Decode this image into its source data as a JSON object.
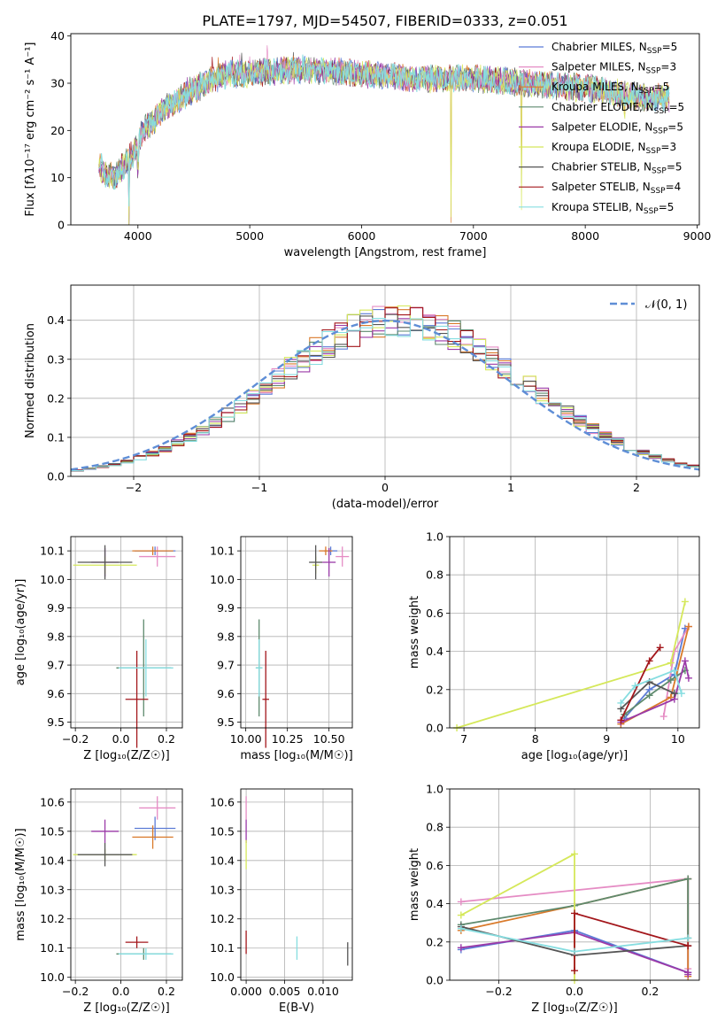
{
  "figure_title": "PLATE=1797, MJD=54507, FIBERID=0333, z=0.051",
  "chart_data": [
    {
      "id": "spectrum",
      "type": "line",
      "xlabel": "wavelength [Angstrom, rest frame]",
      "ylabel": "Flux [fλ10⁻¹⁷ erg cm⁻² s⁻¹ A⁻¹]",
      "xlim": [
        3400,
        9020
      ],
      "ylim": [
        0,
        40.5
      ],
      "xticks": [
        4000,
        5000,
        6000,
        7000,
        8000,
        9000
      ],
      "yticks": [
        0,
        10,
        20,
        30,
        40
      ],
      "legend_position": "top-right",
      "series": [
        {
          "name": "Chabrier MILES, N",
          "sub": "SSP",
          "suffix": "=5",
          "color": "#5b7bd6"
        },
        {
          "name": "Salpeter MILES, N",
          "sub": "SSP",
          "suffix": "=3",
          "color": "#e58cc4"
        },
        {
          "name": "Kroupa MILES, N",
          "sub": "SSP",
          "suffix": "=5",
          "color": "#d97a2b"
        },
        {
          "name": "Chabrier ELODIE, N",
          "sub": "SSP",
          "suffix": "=5",
          "color": "#5e8a6e"
        },
        {
          "name": "Salpeter ELODIE, N",
          "sub": "SSP",
          "suffix": "=5",
          "color": "#9b3aa8"
        },
        {
          "name": "Kroupa ELODIE, N",
          "sub": "SSP",
          "suffix": "=3",
          "color": "#d5e85a"
        },
        {
          "name": "Chabrier STELIB, N",
          "sub": "SSP",
          "suffix": "=5",
          "color": "#555555"
        },
        {
          "name": "Salpeter STELIB, N",
          "sub": "SSP",
          "suffix": "=4",
          "color": "#a3161b"
        },
        {
          "name": "Kroupa STELIB, N",
          "sub": "SSP",
          "suffix": "=5",
          "color": "#86dde0"
        }
      ],
      "continuum": [
        [
          3650,
          13
        ],
        [
          3700,
          11
        ],
        [
          3800,
          10
        ],
        [
          3850,
          12
        ],
        [
          3950,
          15
        ],
        [
          4050,
          20
        ],
        [
          4150,
          22
        ],
        [
          4250,
          25
        ],
        [
          4400,
          27
        ],
        [
          4600,
          30
        ],
        [
          4800,
          32
        ],
        [
          5000,
          32
        ],
        [
          5200,
          32.5
        ],
        [
          5500,
          33
        ],
        [
          6000,
          32
        ],
        [
          6500,
          31
        ],
        [
          7000,
          31
        ],
        [
          7500,
          30
        ],
        [
          8000,
          29
        ],
        [
          8500,
          27
        ],
        [
          8750,
          27
        ]
      ],
      "spikes": [
        [
          3920,
          -13
        ],
        [
          4000,
          -5
        ],
        [
          6800,
          -31
        ],
        [
          7430,
          -24
        ],
        [
          8350,
          -4
        ]
      ]
    },
    {
      "id": "residual-histogram",
      "type": "bar",
      "xlabel": "(data-model)/error",
      "ylabel": "Normed distribution",
      "xlim": [
        -2.5,
        2.5
      ],
      "ylim": [
        0,
        0.49
      ],
      "xticks": [
        -2,
        -1,
        0,
        1,
        2
      ],
      "yticks": [
        0.0,
        0.1,
        0.2,
        0.3,
        0.4
      ],
      "legend_position": "top-right",
      "reference_curve": {
        "name": "𝒩(0, 1)",
        "color": "#5f8ed6"
      },
      "bin_width": 0.1
    },
    {
      "id": "age-vs-metallicity",
      "type": "scatter",
      "xlabel": "Z [log₁₀(Z/Z☉)]",
      "ylabel": "age  [log₁₀(age/yr)]",
      "xlim": [
        -0.22,
        0.27
      ],
      "ylim": [
        9.48,
        10.15
      ],
      "xticks": [
        -0.2,
        0.0,
        0.2
      ],
      "yticks": [
        9.5,
        9.6,
        9.7,
        9.8,
        9.9,
        10.0,
        10.1
      ],
      "points": [
        {
          "series": 0,
          "x": 0.15,
          "y": 10.1,
          "xerr": 0.09,
          "yerr": 0.015
        },
        {
          "series": 1,
          "x": 0.16,
          "y": 10.08,
          "xerr": 0.08,
          "yerr": 0.035
        },
        {
          "series": 2,
          "x": 0.14,
          "y": 10.1,
          "xerr": 0.09,
          "yerr": 0.015
        },
        {
          "series": 3,
          "x": 0.1,
          "y": 9.69,
          "xerr": 0.12,
          "yerr": 0.17
        },
        {
          "series": 4,
          "x": -0.07,
          "y": 10.06,
          "xerr": 0.06,
          "yerr": 0.05
        },
        {
          "series": 5,
          "x": -0.07,
          "y": 10.05,
          "xerr": 0.14,
          "yerr": 0.03
        },
        {
          "series": 6,
          "x": -0.07,
          "y": 10.06,
          "xerr": 0.12,
          "yerr": 0.06
        },
        {
          "series": 7,
          "x": 0.07,
          "y": 9.58,
          "xerr": 0.05,
          "yerr": 0.17
        },
        {
          "series": 8,
          "x": 0.11,
          "y": 9.69,
          "xerr": 0.12,
          "yerr": 0.1
        }
      ]
    },
    {
      "id": "age-vs-mass",
      "type": "scatter",
      "xlabel": "mass [log₁₀(M/M☉)]",
      "ylabel": "",
      "xlim": [
        9.97,
        10.64
      ],
      "ylim": [
        9.48,
        10.15
      ],
      "xticks": [
        10.0,
        10.25,
        10.5
      ],
      "xtick_labels": [
        "10.00",
        "10.25",
        "10.50"
      ],
      "yticks": [
        9.5,
        9.6,
        9.7,
        9.8,
        9.9,
        10.0,
        10.1
      ],
      "points": [
        {
          "series": 0,
          "x": 10.51,
          "y": 10.1,
          "xerr": 0.04,
          "yerr": 0.015
        },
        {
          "series": 1,
          "x": 10.58,
          "y": 10.08,
          "xerr": 0.04,
          "yerr": 0.035
        },
        {
          "series": 2,
          "x": 10.48,
          "y": 10.1,
          "xerr": 0.04,
          "yerr": 0.015
        },
        {
          "series": 3,
          "x": 10.08,
          "y": 9.69,
          "xerr": 0.02,
          "yerr": 0.17
        },
        {
          "series": 4,
          "x": 10.5,
          "y": 10.06,
          "xerr": 0.04,
          "yerr": 0.05
        },
        {
          "series": 5,
          "x": 10.42,
          "y": 10.05,
          "xerr": 0.02,
          "yerr": 0.03
        },
        {
          "series": 6,
          "x": 10.42,
          "y": 10.06,
          "xerr": 0.04,
          "yerr": 0.06
        },
        {
          "series": 7,
          "x": 10.12,
          "y": 9.58,
          "xerr": 0.02,
          "yerr": 0.17
        },
        {
          "series": 8,
          "x": 10.08,
          "y": 9.69,
          "xerr": 0.02,
          "yerr": 0.1
        }
      ]
    },
    {
      "id": "weight-vs-age",
      "type": "line",
      "xlabel": "age  [log₁₀(age/yr)]",
      "ylabel": "mass weight",
      "xlim": [
        6.8,
        10.3
      ],
      "ylim": [
        0,
        1.0
      ],
      "xticks": [
        7,
        8,
        9,
        10
      ],
      "yticks": [
        0.0,
        0.2,
        0.4,
        0.6,
        0.8,
        1.0
      ],
      "lines": [
        {
          "series": 0,
          "x": [
            9.25,
            9.6,
            9.95,
            10.1
          ],
          "y": [
            0.05,
            0.2,
            0.28,
            0.52
          ]
        },
        {
          "series": 1,
          "x": [
            9.8,
            9.95,
            10.15
          ],
          "y": [
            0.06,
            0.4,
            0.53
          ]
        },
        {
          "series": 2,
          "x": [
            9.2,
            9.9,
            10.15
          ],
          "y": [
            0.02,
            0.16,
            0.53
          ]
        },
        {
          "series": 3,
          "x": [
            9.25,
            9.6,
            9.9,
            10.1
          ],
          "y": [
            0.07,
            0.17,
            0.25,
            0.3
          ]
        },
        {
          "series": 4,
          "x": [
            9.2,
            9.95,
            10.1,
            10.15
          ],
          "y": [
            0.03,
            0.15,
            0.35,
            0.26
          ]
        },
        {
          "series": 5,
          "x": [
            6.9,
            9.9,
            10.1
          ],
          "y": [
            0.0,
            0.34,
            0.66
          ]
        },
        {
          "series": 6,
          "x": [
            9.2,
            9.6,
            9.95
          ],
          "y": [
            0.1,
            0.24,
            0.18
          ]
        },
        {
          "series": 7,
          "x": [
            9.2,
            9.6,
            9.75
          ],
          "y": [
            0.04,
            0.35,
            0.42
          ]
        },
        {
          "series": 8,
          "x": [
            9.2,
            9.4,
            9.95,
            10.05
          ],
          "y": [
            0.13,
            0.22,
            0.3,
            0.18
          ]
        }
      ]
    },
    {
      "id": "mass-vs-metallicity",
      "type": "scatter",
      "xlabel": "Z [log₁₀(Z/Z☉)]",
      "ylabel": "mass [log₁₀(M/M☉)]",
      "xlim": [
        -0.22,
        0.27
      ],
      "ylim": [
        9.99,
        10.645
      ],
      "xticks": [
        -0.2,
        0.0,
        0.2
      ],
      "yticks": [
        10.0,
        10.1,
        10.2,
        10.3,
        10.4,
        10.5,
        10.6
      ],
      "points": [
        {
          "series": 0,
          "x": 0.15,
          "y": 10.51,
          "xerr": 0.09,
          "yerr": 0.04
        },
        {
          "series": 1,
          "x": 0.16,
          "y": 10.58,
          "xerr": 0.08,
          "yerr": 0.04
        },
        {
          "series": 2,
          "x": 0.14,
          "y": 10.48,
          "xerr": 0.09,
          "yerr": 0.04
        },
        {
          "series": 3,
          "x": 0.1,
          "y": 10.08,
          "xerr": 0.12,
          "yerr": 0.02
        },
        {
          "series": 4,
          "x": -0.07,
          "y": 10.5,
          "xerr": 0.06,
          "yerr": 0.04
        },
        {
          "series": 5,
          "x": -0.07,
          "y": 10.42,
          "xerr": 0.14,
          "yerr": 0.02
        },
        {
          "series": 6,
          "x": -0.07,
          "y": 10.42,
          "xerr": 0.12,
          "yerr": 0.04
        },
        {
          "series": 7,
          "x": 0.07,
          "y": 10.12,
          "xerr": 0.05,
          "yerr": 0.02
        },
        {
          "series": 8,
          "x": 0.11,
          "y": 10.08,
          "xerr": 0.12,
          "yerr": 0.02
        }
      ]
    },
    {
      "id": "mass-vs-ebv",
      "type": "scatter",
      "xlabel": "E(B-V)",
      "ylabel": "",
      "xlim": [
        -0.0007,
        0.0138
      ],
      "ylim": [
        9.99,
        10.645
      ],
      "xticks": [
        0.0,
        0.005,
        0.01
      ],
      "xtick_labels": [
        "0.000",
        "0.005",
        "0.010"
      ],
      "yticks": [
        10.0,
        10.1,
        10.2,
        10.3,
        10.4,
        10.5,
        10.6
      ],
      "points": [
        {
          "series": 1,
          "x": 0.0,
          "y": 10.58,
          "xerr": 0,
          "yerr": 0.04
        },
        {
          "series": 4,
          "x": 0.0,
          "y": 10.5,
          "xerr": 0,
          "yerr": 0.04
        },
        {
          "series": 5,
          "x": 0.0,
          "y": 10.42,
          "xerr": 0,
          "yerr": 0.05
        },
        {
          "series": 7,
          "x": 0.0,
          "y": 10.12,
          "xerr": 0,
          "yerr": 0.04
        },
        {
          "series": 8,
          "x": 0.0066,
          "y": 10.1,
          "xerr": 0,
          "yerr": 0.04
        },
        {
          "series": 6,
          "x": 0.0132,
          "y": 10.08,
          "xerr": 0,
          "yerr": 0.04
        }
      ]
    },
    {
      "id": "weight-vs-metallicity",
      "type": "line",
      "xlabel": "Z [log₁₀(Z/Z☉)]",
      "ylabel": "mass weight",
      "xlim": [
        -0.33,
        0.33
      ],
      "ylim": [
        0,
        1.0
      ],
      "xticks": [
        -0.2,
        0.0,
        0.2
      ],
      "yticks": [
        0.0,
        0.2,
        0.4,
        0.6,
        0.8,
        1.0
      ],
      "lines": [
        {
          "series": 0,
          "x": [
            -0.3,
            0.0,
            0.3,
            0.3
          ],
          "y": [
            0.16,
            0.26,
            0.04,
            0.53
          ]
        },
        {
          "series": 1,
          "x": [
            -0.3,
            0.3,
            0.3
          ],
          "y": [
            0.41,
            0.53,
            0.06
          ]
        },
        {
          "series": 2,
          "x": [
            -0.3,
            0.0,
            0.3,
            0.3
          ],
          "y": [
            0.26,
            0.39,
            0.53,
            0.02
          ]
        },
        {
          "series": 3,
          "x": [
            -0.3,
            0.0,
            0.3,
            0.3
          ],
          "y": [
            0.29,
            0.39,
            0.53,
            0.22
          ]
        },
        {
          "series": 4,
          "x": [
            -0.3,
            0.0,
            0.3,
            0.3
          ],
          "y": [
            0.17,
            0.25,
            0.04,
            0.03
          ]
        },
        {
          "series": 5,
          "x": [
            -0.3,
            0.0,
            0.0
          ],
          "y": [
            0.34,
            0.66,
            0.0
          ]
        },
        {
          "series": 6,
          "x": [
            -0.3,
            0.0,
            0.3
          ],
          "y": [
            0.28,
            0.13,
            0.18
          ]
        },
        {
          "series": 7,
          "x": [
            0.0,
            0.0,
            0.3
          ],
          "y": [
            0.05,
            0.35,
            0.18
          ]
        },
        {
          "series": 8,
          "x": [
            -0.3,
            0.0,
            0.3
          ],
          "y": [
            0.27,
            0.15,
            0.22
          ]
        }
      ]
    }
  ]
}
